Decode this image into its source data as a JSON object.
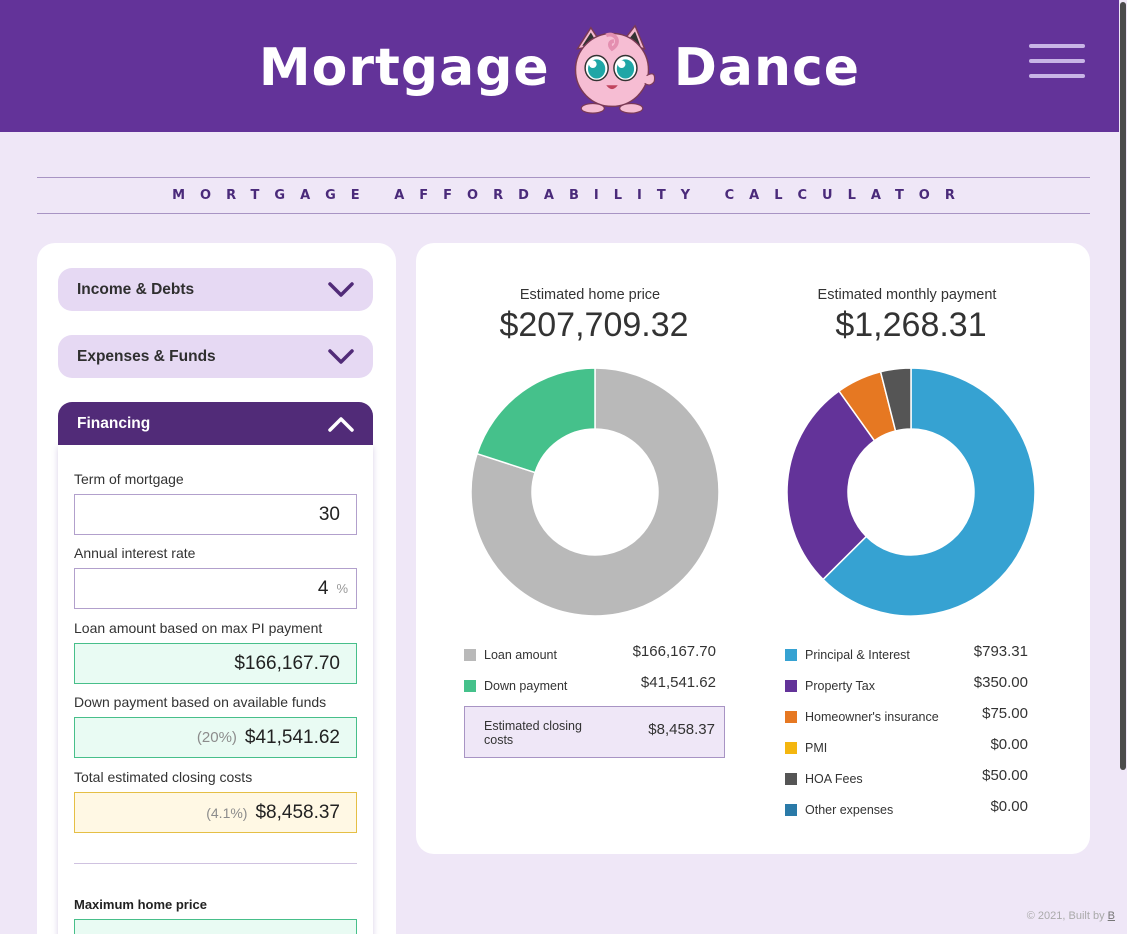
{
  "header": {
    "brand_left": "Mortgage",
    "brand_right": "Dance",
    "mascot_icon": "jigglypuff-icon",
    "menu_icon": "hamburger-menu-icon",
    "bg_color": "#633399"
  },
  "title": "MORTGAGE AFFORDABILITY CALCULATOR",
  "sidebar": {
    "sections": [
      {
        "label": "Income & Debts",
        "expanded": false
      },
      {
        "label": "Expenses & Funds",
        "expanded": false
      },
      {
        "label": "Financing",
        "expanded": true
      }
    ],
    "financing": {
      "term_label": "Term of mortgage",
      "term_value": "30",
      "rate_label": "Annual interest rate",
      "rate_value": "4",
      "rate_unit": "%",
      "loan_label": "Loan amount based on max PI payment",
      "loan_value": "$166,167.70",
      "down_label": "Down payment based on available funds",
      "down_pct": "(20%)",
      "down_value": "$41,541.62",
      "closing_label": "Total estimated closing costs",
      "closing_pct": "(4.1%)",
      "closing_value": "$8,458.37",
      "max_price_label": "Maximum home price"
    }
  },
  "summary": {
    "home_price_label": "Estimated home price",
    "home_price_value": "$207,709.32",
    "monthly_label": "Estimated monthly payment",
    "monthly_value": "$1,268.31"
  },
  "chart_data": [
    {
      "type": "pie",
      "categories": [
        "Loan amount",
        "Down payment"
      ],
      "values": [
        166167.7,
        41541.62
      ],
      "labels": [
        "$166,167.70",
        "$41,541.62"
      ],
      "colors": [
        "#b9b9b9",
        "#45c18b"
      ]
    },
    {
      "type": "pie",
      "categories": [
        "Principal & Interest",
        "Property Tax",
        "Homeowner's insurance",
        "PMI",
        "HOA Fees",
        "Other expenses"
      ],
      "values": [
        793.31,
        350.0,
        75.0,
        0.0,
        50.0,
        0.0
      ],
      "labels": [
        "$793.31",
        "$350.00",
        "$75.00",
        "$0.00",
        "$50.00",
        "$0.00"
      ],
      "colors": [
        "#36a2d2",
        "#633399",
        "#e67822",
        "#f4b60f",
        "#555555",
        "#2a7aa8"
      ]
    }
  ],
  "closing": {
    "label": "Estimated closing costs",
    "value": "$8,458.37"
  },
  "footer": {
    "text": "© 2021, Built by",
    "link": "B"
  }
}
